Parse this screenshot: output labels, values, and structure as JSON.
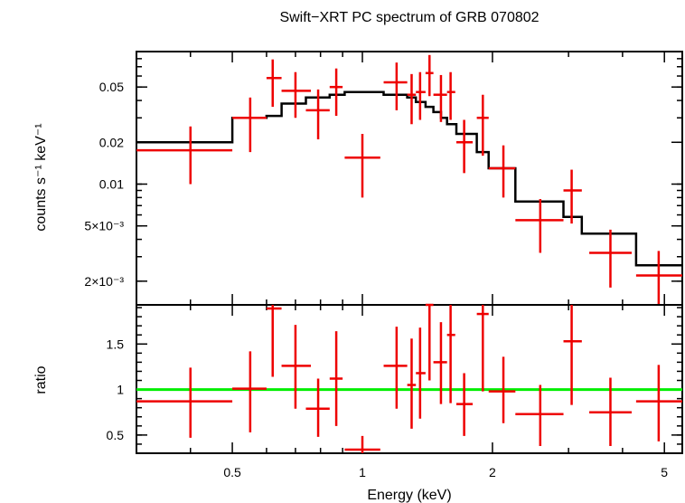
{
  "chart_data": {
    "type": "scatter",
    "title": "Swift−XRT PC spectrum of GRB 070802",
    "xlabel": "Energy (keV)",
    "x_scale": "log",
    "xlim": [
      0.3,
      5.5
    ],
    "x_ticks": [
      {
        "value": 0.5,
        "label": "0.5"
      },
      {
        "value": 1,
        "label": "1"
      },
      {
        "value": 2,
        "label": "2"
      },
      {
        "value": 5,
        "label": "5"
      }
    ],
    "panels": [
      {
        "name": "spectrum",
        "ylabel": "counts s⁻¹ keV⁻¹",
        "y_scale": "log",
        "ylim": [
          0.00135,
          0.09
        ],
        "y_ticks": [
          {
            "value": 0.05,
            "label": "0.05"
          },
          {
            "value": 0.02,
            "label": "0.02"
          },
          {
            "value": 0.01,
            "label": "0.01"
          },
          {
            "value": 0.005,
            "label": "5×10⁻³"
          },
          {
            "value": 0.002,
            "label": "2×10⁻³"
          }
        ],
        "data_color": "#ee0000",
        "model_color": "#000000",
        "data": [
          {
            "x": 0.4,
            "xlo": 0.3,
            "xhi": 0.5,
            "y": 0.0175,
            "ylo": 0.01,
            "yhi": 0.026
          },
          {
            "x": 0.55,
            "xlo": 0.5,
            "xhi": 0.6,
            "y": 0.03,
            "ylo": 0.017,
            "yhi": 0.042
          },
          {
            "x": 0.62,
            "xlo": 0.6,
            "xhi": 0.65,
            "y": 0.058,
            "ylo": 0.036,
            "yhi": 0.079
          },
          {
            "x": 0.7,
            "xlo": 0.65,
            "xhi": 0.76,
            "y": 0.047,
            "ylo": 0.03,
            "yhi": 0.064
          },
          {
            "x": 0.79,
            "xlo": 0.74,
            "xhi": 0.84,
            "y": 0.034,
            "ylo": 0.021,
            "yhi": 0.048
          },
          {
            "x": 0.87,
            "xlo": 0.84,
            "xhi": 0.9,
            "y": 0.05,
            "ylo": 0.031,
            "yhi": 0.068
          },
          {
            "x": 1.0,
            "xlo": 0.91,
            "xhi": 1.1,
            "y": 0.0155,
            "ylo": 0.008,
            "yhi": 0.023
          },
          {
            "x": 1.2,
            "xlo": 1.12,
            "xhi": 1.27,
            "y": 0.054,
            "ylo": 0.034,
            "yhi": 0.075
          },
          {
            "x": 1.3,
            "xlo": 1.27,
            "xhi": 1.33,
            "y": 0.044,
            "ylo": 0.027,
            "yhi": 0.062
          },
          {
            "x": 1.36,
            "xlo": 1.33,
            "xhi": 1.4,
            "y": 0.046,
            "ylo": 0.029,
            "yhi": 0.064
          },
          {
            "x": 1.43,
            "xlo": 1.4,
            "xhi": 1.46,
            "y": 0.063,
            "ylo": 0.043,
            "yhi": 0.085
          },
          {
            "x": 1.52,
            "xlo": 1.46,
            "xhi": 1.57,
            "y": 0.044,
            "ylo": 0.028,
            "yhi": 0.061
          },
          {
            "x": 1.6,
            "xlo": 1.57,
            "xhi": 1.64,
            "y": 0.046,
            "ylo": 0.029,
            "yhi": 0.064
          },
          {
            "x": 1.72,
            "xlo": 1.65,
            "xhi": 1.8,
            "y": 0.02,
            "ylo": 0.012,
            "yhi": 0.029
          },
          {
            "x": 1.9,
            "xlo": 1.84,
            "xhi": 1.96,
            "y": 0.03,
            "ylo": 0.016,
            "yhi": 0.044
          },
          {
            "x": 2.12,
            "xlo": 1.96,
            "xhi": 2.26,
            "y": 0.013,
            "ylo": 0.008,
            "yhi": 0.019
          },
          {
            "x": 2.58,
            "xlo": 2.26,
            "xhi": 2.92,
            "y": 0.0055,
            "ylo": 0.0032,
            "yhi": 0.0078
          },
          {
            "x": 3.05,
            "xlo": 2.92,
            "xhi": 3.22,
            "y": 0.009,
            "ylo": 0.0052,
            "yhi": 0.0127
          },
          {
            "x": 3.75,
            "xlo": 3.35,
            "xhi": 4.2,
            "y": 0.0032,
            "ylo": 0.0018,
            "yhi": 0.0047
          },
          {
            "x": 4.85,
            "xlo": 4.3,
            "xhi": 5.5,
            "y": 0.0022,
            "ylo": 0.00135,
            "yhi": 0.0033
          }
        ],
        "model": [
          {
            "xlo": 0.3,
            "xhi": 0.5,
            "y": 0.02
          },
          {
            "xlo": 0.5,
            "xhi": 0.6,
            "y": 0.03
          },
          {
            "xlo": 0.6,
            "xhi": 0.65,
            "y": 0.031
          },
          {
            "xlo": 0.65,
            "xhi": 0.74,
            "y": 0.038
          },
          {
            "xlo": 0.74,
            "xhi": 0.84,
            "y": 0.042
          },
          {
            "xlo": 0.84,
            "xhi": 0.91,
            "y": 0.044
          },
          {
            "xlo": 0.91,
            "xhi": 1.12,
            "y": 0.046
          },
          {
            "xlo": 1.12,
            "xhi": 1.27,
            "y": 0.044
          },
          {
            "xlo": 1.27,
            "xhi": 1.33,
            "y": 0.042
          },
          {
            "xlo": 1.33,
            "xhi": 1.4,
            "y": 0.039
          },
          {
            "xlo": 1.4,
            "xhi": 1.46,
            "y": 0.036
          },
          {
            "xlo": 1.46,
            "xhi": 1.52,
            "y": 0.033
          },
          {
            "xlo": 1.52,
            "xhi": 1.57,
            "y": 0.03
          },
          {
            "xlo": 1.57,
            "xhi": 1.65,
            "y": 0.027
          },
          {
            "xlo": 1.65,
            "xhi": 1.84,
            "y": 0.023
          },
          {
            "xlo": 1.84,
            "xhi": 1.96,
            "y": 0.017
          },
          {
            "xlo": 1.96,
            "xhi": 2.26,
            "y": 0.013
          },
          {
            "xlo": 2.26,
            "xhi": 2.92,
            "y": 0.0075
          },
          {
            "xlo": 2.92,
            "xhi": 3.22,
            "y": 0.0058
          },
          {
            "xlo": 3.22,
            "xhi": 4.3,
            "y": 0.0044
          },
          {
            "xlo": 4.3,
            "xhi": 5.5,
            "y": 0.0026
          }
        ]
      },
      {
        "name": "ratio",
        "ylabel": "ratio",
        "y_scale": "linear",
        "ylim": [
          0.3,
          1.93
        ],
        "y_ticks": [
          {
            "value": 0.5,
            "label": "0.5"
          },
          {
            "value": 1,
            "label": "1"
          },
          {
            "value": 1.5,
            "label": "1.5"
          }
        ],
        "reference_line": {
          "y": 1,
          "color": "#00ee00"
        },
        "data_color": "#ee0000",
        "data": [
          {
            "x": 0.4,
            "xlo": 0.3,
            "xhi": 0.5,
            "y": 0.87,
            "ylo": 0.47,
            "yhi": 1.24
          },
          {
            "x": 0.55,
            "xlo": 0.5,
            "xhi": 0.6,
            "y": 1.01,
            "ylo": 0.53,
            "yhi": 1.42
          },
          {
            "x": 0.62,
            "xlo": 0.6,
            "xhi": 0.65,
            "y": 1.89,
            "ylo": 1.14,
            "yhi": 1.93
          },
          {
            "x": 0.7,
            "xlo": 0.65,
            "xhi": 0.76,
            "y": 1.26,
            "ylo": 0.79,
            "yhi": 1.71
          },
          {
            "x": 0.79,
            "xlo": 0.74,
            "xhi": 0.84,
            "y": 0.79,
            "ylo": 0.48,
            "yhi": 1.12
          },
          {
            "x": 0.87,
            "xlo": 0.84,
            "xhi": 0.9,
            "y": 1.12,
            "ylo": 0.6,
            "yhi": 1.64
          },
          {
            "x": 1.0,
            "xlo": 0.91,
            "xhi": 1.1,
            "y": 0.34,
            "ylo": 0.3,
            "yhi": 0.49
          },
          {
            "x": 1.2,
            "xlo": 1.12,
            "xhi": 1.27,
            "y": 1.26,
            "ylo": 0.79,
            "yhi": 1.69
          },
          {
            "x": 1.3,
            "xlo": 1.27,
            "xhi": 1.33,
            "y": 1.05,
            "ylo": 0.57,
            "yhi": 1.56
          },
          {
            "x": 1.36,
            "xlo": 1.33,
            "xhi": 1.4,
            "y": 1.18,
            "ylo": 0.68,
            "yhi": 1.68
          },
          {
            "x": 1.43,
            "xlo": 1.4,
            "xhi": 1.46,
            "y": 1.93,
            "ylo": 1.1,
            "yhi": 1.93
          },
          {
            "x": 1.52,
            "xlo": 1.46,
            "xhi": 1.57,
            "y": 1.3,
            "ylo": 0.84,
            "yhi": 1.74
          },
          {
            "x": 1.6,
            "xlo": 1.57,
            "xhi": 1.64,
            "y": 1.6,
            "ylo": 0.85,
            "yhi": 1.93
          },
          {
            "x": 1.72,
            "xlo": 1.65,
            "xhi": 1.8,
            "y": 0.84,
            "ylo": 0.49,
            "yhi": 1.18
          },
          {
            "x": 1.9,
            "xlo": 1.84,
            "xhi": 1.96,
            "y": 1.83,
            "ylo": 0.98,
            "yhi": 1.93
          },
          {
            "x": 2.12,
            "xlo": 1.96,
            "xhi": 2.26,
            "y": 0.98,
            "ylo": 0.63,
            "yhi": 1.36
          },
          {
            "x": 2.58,
            "xlo": 2.26,
            "xhi": 2.92,
            "y": 0.73,
            "ylo": 0.38,
            "yhi": 1.05
          },
          {
            "x": 3.05,
            "xlo": 2.92,
            "xhi": 3.22,
            "y": 1.53,
            "ylo": 0.83,
            "yhi": 1.93
          },
          {
            "x": 3.75,
            "xlo": 3.35,
            "xhi": 4.2,
            "y": 0.75,
            "ylo": 0.38,
            "yhi": 1.13
          },
          {
            "x": 4.85,
            "xlo": 4.3,
            "xhi": 5.5,
            "y": 0.87,
            "ylo": 0.43,
            "yhi": 1.27
          }
        ]
      }
    ]
  }
}
